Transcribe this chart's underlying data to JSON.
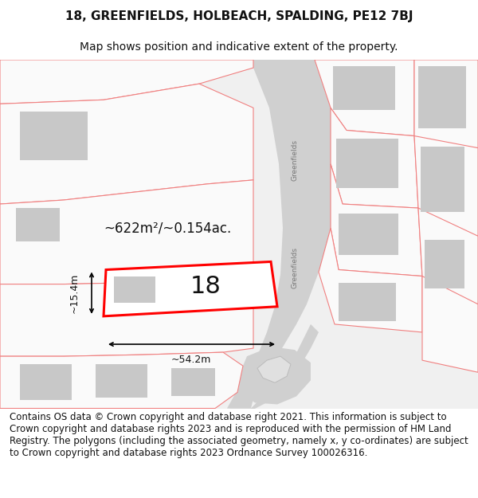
{
  "title_line1": "18, GREENFIELDS, HOLBEACH, SPALDING, PE12 7BJ",
  "title_line2": "Map shows position and indicative extent of the property.",
  "footer_text": "Contains OS data © Crown copyright and database right 2021. This information is subject to Crown copyright and database rights 2023 and is reproduced with the permission of HM Land Registry. The polygons (including the associated geometry, namely x, y co-ordinates) are subject to Crown copyright and database rights 2023 Ordnance Survey 100026316.",
  "area_label": "~622m²/~0.154ac.",
  "width_label": "~54.2m",
  "height_label": "~15.4m",
  "plot_number": "18",
  "bg_color": "#ffffff",
  "map_bg": "#f0f0f0",
  "road_color": "#d0d0d0",
  "building_color": "#c8c8c8",
  "plot_outline_color": "#ff0000",
  "other_outline_color": "#f08080",
  "street_label": "Greenfields",
  "title_fontsize": 11,
  "subtitle_fontsize": 10,
  "footer_fontsize": 8.5
}
